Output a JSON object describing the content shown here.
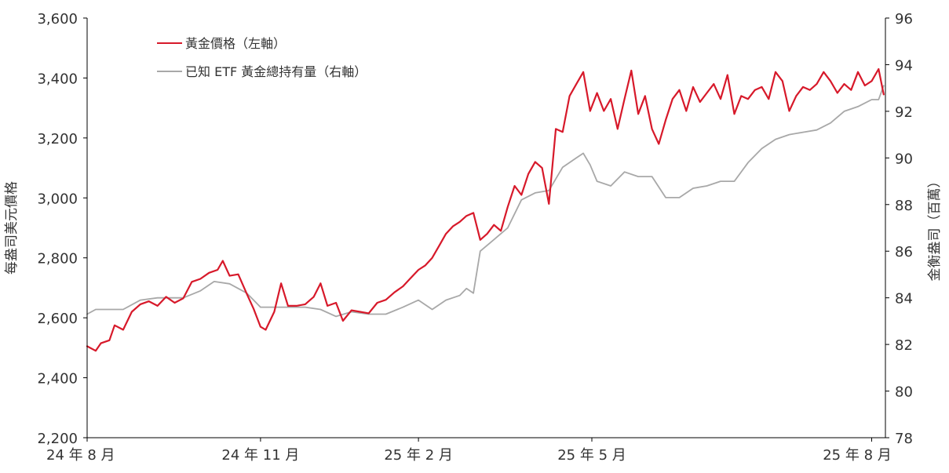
{
  "chart_data": {
    "type": "line",
    "title": "",
    "xlabel": "",
    "ylabel_left": "每盎司美元價格",
    "ylabel_right": "金衡盎司（百萬）",
    "x_ticks": [
      "24 年 8 月",
      "24 年 11 月",
      "25 年 2 月",
      "25 年 5 月",
      "25 年 8 月"
    ],
    "y_left": {
      "min": 2200,
      "max": 3600,
      "ticks": [
        "2,200",
        "2,400",
        "2,600",
        "2,800",
        "3,000",
        "3,200",
        "3,400",
        "3,600"
      ]
    },
    "y_right": {
      "min": 78,
      "max": 96,
      "ticks": [
        "78",
        "80",
        "82",
        "84",
        "86",
        "88",
        "90",
        "92",
        "94",
        "96"
      ]
    },
    "grid": false,
    "legend_position": "top-left",
    "series": [
      {
        "name": "黃金價格（左軸）",
        "axis": "left",
        "color": "#d7192a",
        "points": [
          [
            "2024-08-01",
            2505
          ],
          [
            "2024-08-06",
            2490
          ],
          [
            "2024-08-09",
            2515
          ],
          [
            "2024-08-14",
            2525
          ],
          [
            "2024-08-17",
            2575
          ],
          [
            "2024-08-22",
            2560
          ],
          [
            "2024-08-27",
            2620
          ],
          [
            "2024-09-01",
            2645
          ],
          [
            "2024-09-06",
            2655
          ],
          [
            "2024-09-11",
            2640
          ],
          [
            "2024-09-16",
            2670
          ],
          [
            "2024-09-21",
            2650
          ],
          [
            "2024-09-26",
            2665
          ],
          [
            "2024-10-01",
            2720
          ],
          [
            "2024-10-06",
            2730
          ],
          [
            "2024-10-11",
            2750
          ],
          [
            "2024-10-16",
            2760
          ],
          [
            "2024-10-19",
            2790
          ],
          [
            "2024-10-23",
            2740
          ],
          [
            "2024-10-28",
            2745
          ],
          [
            "2024-11-02",
            2680
          ],
          [
            "2024-11-06",
            2630
          ],
          [
            "2024-11-10",
            2570
          ],
          [
            "2024-11-13",
            2560
          ],
          [
            "2024-11-18",
            2620
          ],
          [
            "2024-11-22",
            2715
          ],
          [
            "2024-11-26",
            2640
          ],
          [
            "2024-12-01",
            2640
          ],
          [
            "2024-12-06",
            2645
          ],
          [
            "2024-12-11",
            2670
          ],
          [
            "2024-12-15",
            2715
          ],
          [
            "2024-12-19",
            2640
          ],
          [
            "2024-12-24",
            2650
          ],
          [
            "2024-12-28",
            2590
          ],
          [
            "2025-01-02",
            2625
          ],
          [
            "2025-01-07",
            2620
          ],
          [
            "2025-01-12",
            2615
          ],
          [
            "2025-01-17",
            2650
          ],
          [
            "2025-01-22",
            2660
          ],
          [
            "2025-01-27",
            2685
          ],
          [
            "2025-02-01",
            2705
          ],
          [
            "2025-02-05",
            2730
          ],
          [
            "2025-02-10",
            2760
          ],
          [
            "2025-02-14",
            2775
          ],
          [
            "2025-02-18",
            2800
          ],
          [
            "2025-02-22",
            2840
          ],
          [
            "2025-02-26",
            2880
          ],
          [
            "2025-03-02",
            2905
          ],
          [
            "2025-03-06",
            2920
          ],
          [
            "2025-03-10",
            2940
          ],
          [
            "2025-03-14",
            2950
          ],
          [
            "2025-03-18",
            2860
          ],
          [
            "2025-03-22",
            2880
          ],
          [
            "2025-03-26",
            2910
          ],
          [
            "2025-03-30",
            2890
          ],
          [
            "2025-04-03",
            2970
          ],
          [
            "2025-04-07",
            3040
          ],
          [
            "2025-04-11",
            3010
          ],
          [
            "2025-04-15",
            3080
          ],
          [
            "2025-04-19",
            3120
          ],
          [
            "2025-04-23",
            3100
          ],
          [
            "2025-04-27",
            2980
          ],
          [
            "2025-05-01",
            3230
          ],
          [
            "2025-05-05",
            3220
          ],
          [
            "2025-05-09",
            3340
          ],
          [
            "2025-05-13",
            3380
          ],
          [
            "2025-05-17",
            3420
          ],
          [
            "2025-05-21",
            3290
          ],
          [
            "2025-05-25",
            3350
          ],
          [
            "2025-05-29",
            3290
          ],
          [
            "2025-06-02",
            3330
          ],
          [
            "2025-06-06",
            3230
          ],
          [
            "2025-06-10",
            3330
          ],
          [
            "2025-06-14",
            3425
          ],
          [
            "2025-06-18",
            3280
          ],
          [
            "2025-06-22",
            3340
          ],
          [
            "2025-06-26",
            3230
          ],
          [
            "2025-06-30",
            3180
          ],
          [
            "2025-07-04",
            3260
          ],
          [
            "2025-07-08",
            3330
          ],
          [
            "2025-07-12",
            3360
          ],
          [
            "2025-07-16",
            3290
          ],
          [
            "2025-07-20",
            3370
          ],
          [
            "2025-07-24",
            3320
          ],
          [
            "2025-07-28",
            3350
          ],
          [
            "2025-08-01",
            3380
          ],
          [
            "2025-08-05",
            3330
          ],
          [
            "2025-08-09",
            3410
          ],
          [
            "2025-08-13",
            3280
          ],
          [
            "2025-08-17",
            3340
          ],
          [
            "2025-08-21",
            3330
          ],
          [
            "2025-08-25",
            3360
          ],
          [
            "2025-08-29",
            3370
          ],
          [
            "2025-09-02",
            3330
          ],
          [
            "2025-09-06",
            3420
          ],
          [
            "2025-09-10",
            3390
          ],
          [
            "2025-09-14",
            3290
          ],
          [
            "2025-09-18",
            3340
          ],
          [
            "2025-09-22",
            3370
          ],
          [
            "2025-09-26",
            3360
          ],
          [
            "2025-09-30",
            3380
          ],
          [
            "2025-10-04",
            3420
          ],
          [
            "2025-10-08",
            3390
          ],
          [
            "2025-10-12",
            3350
          ],
          [
            "2025-10-16",
            3380
          ],
          [
            "2025-10-20",
            3360
          ],
          [
            "2025-10-24",
            3420
          ],
          [
            "2025-10-28",
            3375
          ],
          [
            "2025-11-01",
            3390
          ],
          [
            "2025-11-05",
            3430
          ],
          [
            "2025-11-08",
            3345
          ]
        ]
      },
      {
        "name": "已知 ETF 黃金總持有量（右軸）",
        "axis": "right",
        "color": "#a8a8a8",
        "points": [
          [
            "2024-08-01",
            83.3
          ],
          [
            "2024-08-06",
            83.5
          ],
          [
            "2024-08-14",
            83.5
          ],
          [
            "2024-08-22",
            83.5
          ],
          [
            "2024-09-01",
            83.9
          ],
          [
            "2024-09-11",
            84.0
          ],
          [
            "2024-09-21",
            84.0
          ],
          [
            "2024-09-26",
            84.0
          ],
          [
            "2024-10-06",
            84.3
          ],
          [
            "2024-10-14",
            84.7
          ],
          [
            "2024-10-23",
            84.6
          ],
          [
            "2024-11-02",
            84.2
          ],
          [
            "2024-11-10",
            83.6
          ],
          [
            "2024-11-18",
            83.6
          ],
          [
            "2024-11-26",
            83.6
          ],
          [
            "2024-12-06",
            83.6
          ],
          [
            "2024-12-15",
            83.5
          ],
          [
            "2024-12-24",
            83.2
          ],
          [
            "2025-01-02",
            83.4
          ],
          [
            "2025-01-12",
            83.3
          ],
          [
            "2025-01-22",
            83.3
          ],
          [
            "2025-02-01",
            83.6
          ],
          [
            "2025-02-10",
            83.9
          ],
          [
            "2025-02-18",
            83.5
          ],
          [
            "2025-02-26",
            83.9
          ],
          [
            "2025-03-06",
            84.1
          ],
          [
            "2025-03-10",
            84.4
          ],
          [
            "2025-03-14",
            84.2
          ],
          [
            "2025-03-18",
            86.0
          ],
          [
            "2025-03-26",
            86.5
          ],
          [
            "2025-04-03",
            87.0
          ],
          [
            "2025-04-11",
            88.2
          ],
          [
            "2025-04-19",
            88.5
          ],
          [
            "2025-04-27",
            88.6
          ],
          [
            "2025-05-05",
            89.6
          ],
          [
            "2025-05-13",
            90.0
          ],
          [
            "2025-05-17",
            90.2
          ],
          [
            "2025-05-21",
            89.7
          ],
          [
            "2025-05-25",
            89.0
          ],
          [
            "2025-06-02",
            88.8
          ],
          [
            "2025-06-10",
            89.4
          ],
          [
            "2025-06-18",
            89.2
          ],
          [
            "2025-06-26",
            89.2
          ],
          [
            "2025-07-04",
            88.3
          ],
          [
            "2025-07-12",
            88.3
          ],
          [
            "2025-07-20",
            88.7
          ],
          [
            "2025-07-28",
            88.8
          ],
          [
            "2025-08-05",
            89.0
          ],
          [
            "2025-08-13",
            89.0
          ],
          [
            "2025-08-21",
            89.8
          ],
          [
            "2025-08-29",
            90.4
          ],
          [
            "2025-09-06",
            90.8
          ],
          [
            "2025-09-14",
            91.0
          ],
          [
            "2025-09-22",
            91.1
          ],
          [
            "2025-09-30",
            91.2
          ],
          [
            "2025-10-08",
            91.5
          ],
          [
            "2025-10-16",
            92.0
          ],
          [
            "2025-10-24",
            92.2
          ],
          [
            "2025-11-01",
            92.5
          ],
          [
            "2025-11-05",
            92.5
          ],
          [
            "2025-11-08",
            93.1
          ]
        ]
      }
    ]
  }
}
